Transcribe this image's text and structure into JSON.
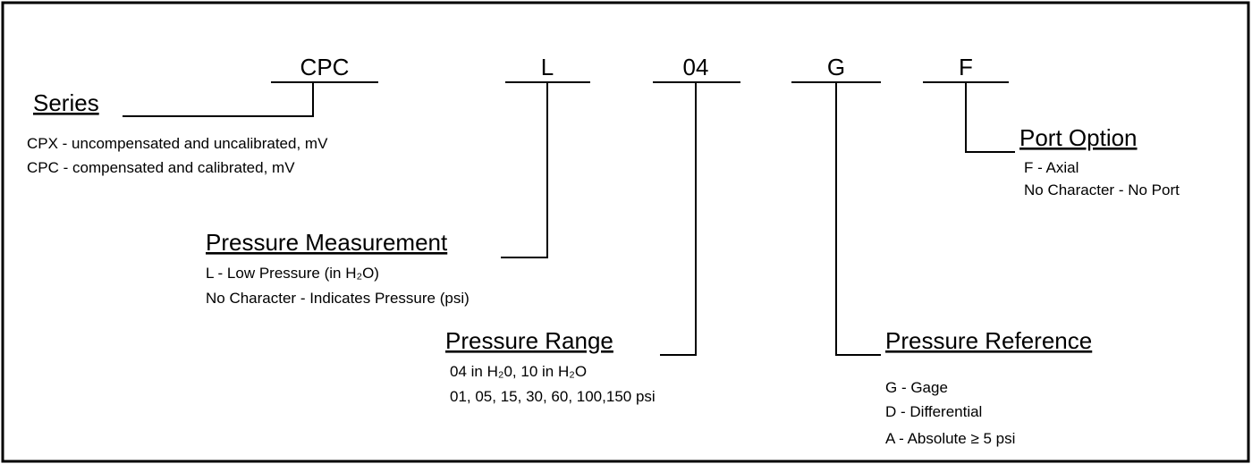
{
  "codes": [
    "CPC",
    "L",
    "04",
    "G",
    "F"
  ],
  "groups": [
    {
      "title": "Series",
      "lines": [
        "CPX - uncompensated and uncalibrated, mV",
        "CPC - compensated and calibrated, mV"
      ]
    },
    {
      "title": "Pressure Measurement",
      "lines": [
        "L - Low Pressure (in H₂O)",
        "No Character - Indicates Pressure (psi)"
      ]
    },
    {
      "title": "Pressure Range",
      "lines": [
        "04 in H₂0, 10 in H₂O",
        "01, 05, 15, 30, 60, 100,150 psi"
      ]
    },
    {
      "title": "Pressure Reference",
      "lines": [
        "G - Gage",
        "D - Differential",
        "A - Absolute ≥ 5 psi"
      ]
    },
    {
      "title": "Port Option",
      "lines": [
        "F - Axial",
        "No Character - No Port"
      ]
    }
  ]
}
